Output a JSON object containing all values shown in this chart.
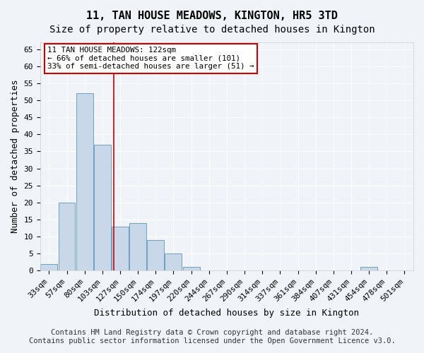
{
  "title": "11, TAN HOUSE MEADOWS, KINGTON, HR5 3TD",
  "subtitle": "Size of property relative to detached houses in Kington",
  "xlabel": "Distribution of detached houses by size in Kington",
  "ylabel": "Number of detached properties",
  "bin_labels": [
    "33sqm",
    "57sqm",
    "80sqm",
    "103sqm",
    "127sqm",
    "150sqm",
    "174sqm",
    "197sqm",
    "220sqm",
    "244sqm",
    "267sqm",
    "290sqm",
    "314sqm",
    "337sqm",
    "361sqm",
    "384sqm",
    "407sqm",
    "431sqm",
    "454sqm",
    "478sqm",
    "501sqm"
  ],
  "bar_values": [
    2,
    20,
    52,
    37,
    13,
    14,
    9,
    5,
    1,
    0,
    0,
    0,
    0,
    0,
    0,
    0,
    0,
    0,
    1,
    0,
    0
  ],
  "bar_color": "#c8d8e8",
  "bar_edge_color": "#6fa0c0",
  "vline_x_index": 3.65,
  "vline_color": "#cc0000",
  "ylim": [
    0,
    67
  ],
  "yticks": [
    0,
    5,
    10,
    15,
    20,
    25,
    30,
    35,
    40,
    45,
    50,
    55,
    60,
    65
  ],
  "annotation_text": "11 TAN HOUSE MEADOWS: 122sqm\n← 66% of detached houses are smaller (101)\n33% of semi-detached houses are larger (51) →",
  "annotation_box_color": "#ffffff",
  "annotation_box_edge": "#cc0000",
  "footer_line1": "Contains HM Land Registry data © Crown copyright and database right 2024.",
  "footer_line2": "Contains public sector information licensed under the Open Government Licence v3.0.",
  "bg_color": "#f0f4f8",
  "plot_bg_color": "#f0f4f8",
  "grid_color": "#ffffff",
  "title_fontsize": 11,
  "subtitle_fontsize": 10,
  "label_fontsize": 9,
  "tick_fontsize": 8,
  "footer_fontsize": 7.5
}
